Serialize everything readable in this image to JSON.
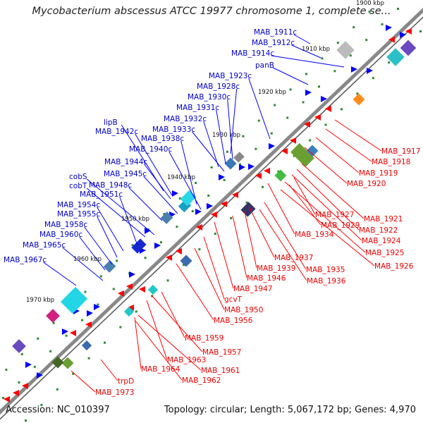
{
  "title": "Mycobacterium abscessus ATCC 19977 chromosome 1, complete se...",
  "footer": {
    "accession": "Accession: NC_010397",
    "summary": "Topology: circular; Length: 5,067,172 bp; Genes: 4,970"
  },
  "colors": {
    "backbone": "#888888",
    "tick": "#2e8b2e",
    "forward_gene": "#0000ff",
    "reverse_gene": "#ff0000",
    "forward_label": "#0000cc",
    "reverse_label": "#ee0000"
  },
  "ticks": [
    "1900 kbp",
    "1910 kbp",
    "1920 kbp",
    "1930 kbp",
    "1940 kbp",
    "1950 kbp",
    "1960 kbp",
    "1970 kbp"
  ],
  "forward_labels": [
    "MAB_1911c",
    "MAB_1912c",
    "MAB_1914c",
    "panB",
    "MAB_1923c",
    "MAB_1928c",
    "MAB_1930c",
    "MAB_1931c",
    "MAB_1932c",
    "MAB_1933c",
    "lipB",
    "MAB_1942c",
    "MAB_1938c",
    "MAB_1940c",
    "MAB_1944c",
    "MAB_1945c",
    "cobS",
    "cobT",
    "MAB_1948c",
    "MAB_1951c",
    "MAB_1954c",
    "MAB_1955c",
    "MAB_1958c",
    "MAB_1960c",
    "MAB_1965c",
    "MAB_1967c"
  ],
  "reverse_labels": [
    "MAB_1917",
    "MAB_1918",
    "MAB_1919",
    "MAB_1920",
    "MAB_1921",
    "MAB_1922",
    "MAB_1924",
    "MAB_1925",
    "MAB_1926",
    "MAB_1927",
    "MAB_1929",
    "MAB_1934",
    "MAB_1937",
    "MAB_1935",
    "MAB_1936",
    "MAB_1939",
    "MAB_1946",
    "MAB_1947",
    "gcvT",
    "MAB_1950",
    "MAB_1956",
    "MAB_1959",
    "MAB_1957",
    "MAB_1963",
    "MAB_1964",
    "MAB_1961",
    "MAB_1962",
    "trpD",
    "MAB_1973"
  ]
}
